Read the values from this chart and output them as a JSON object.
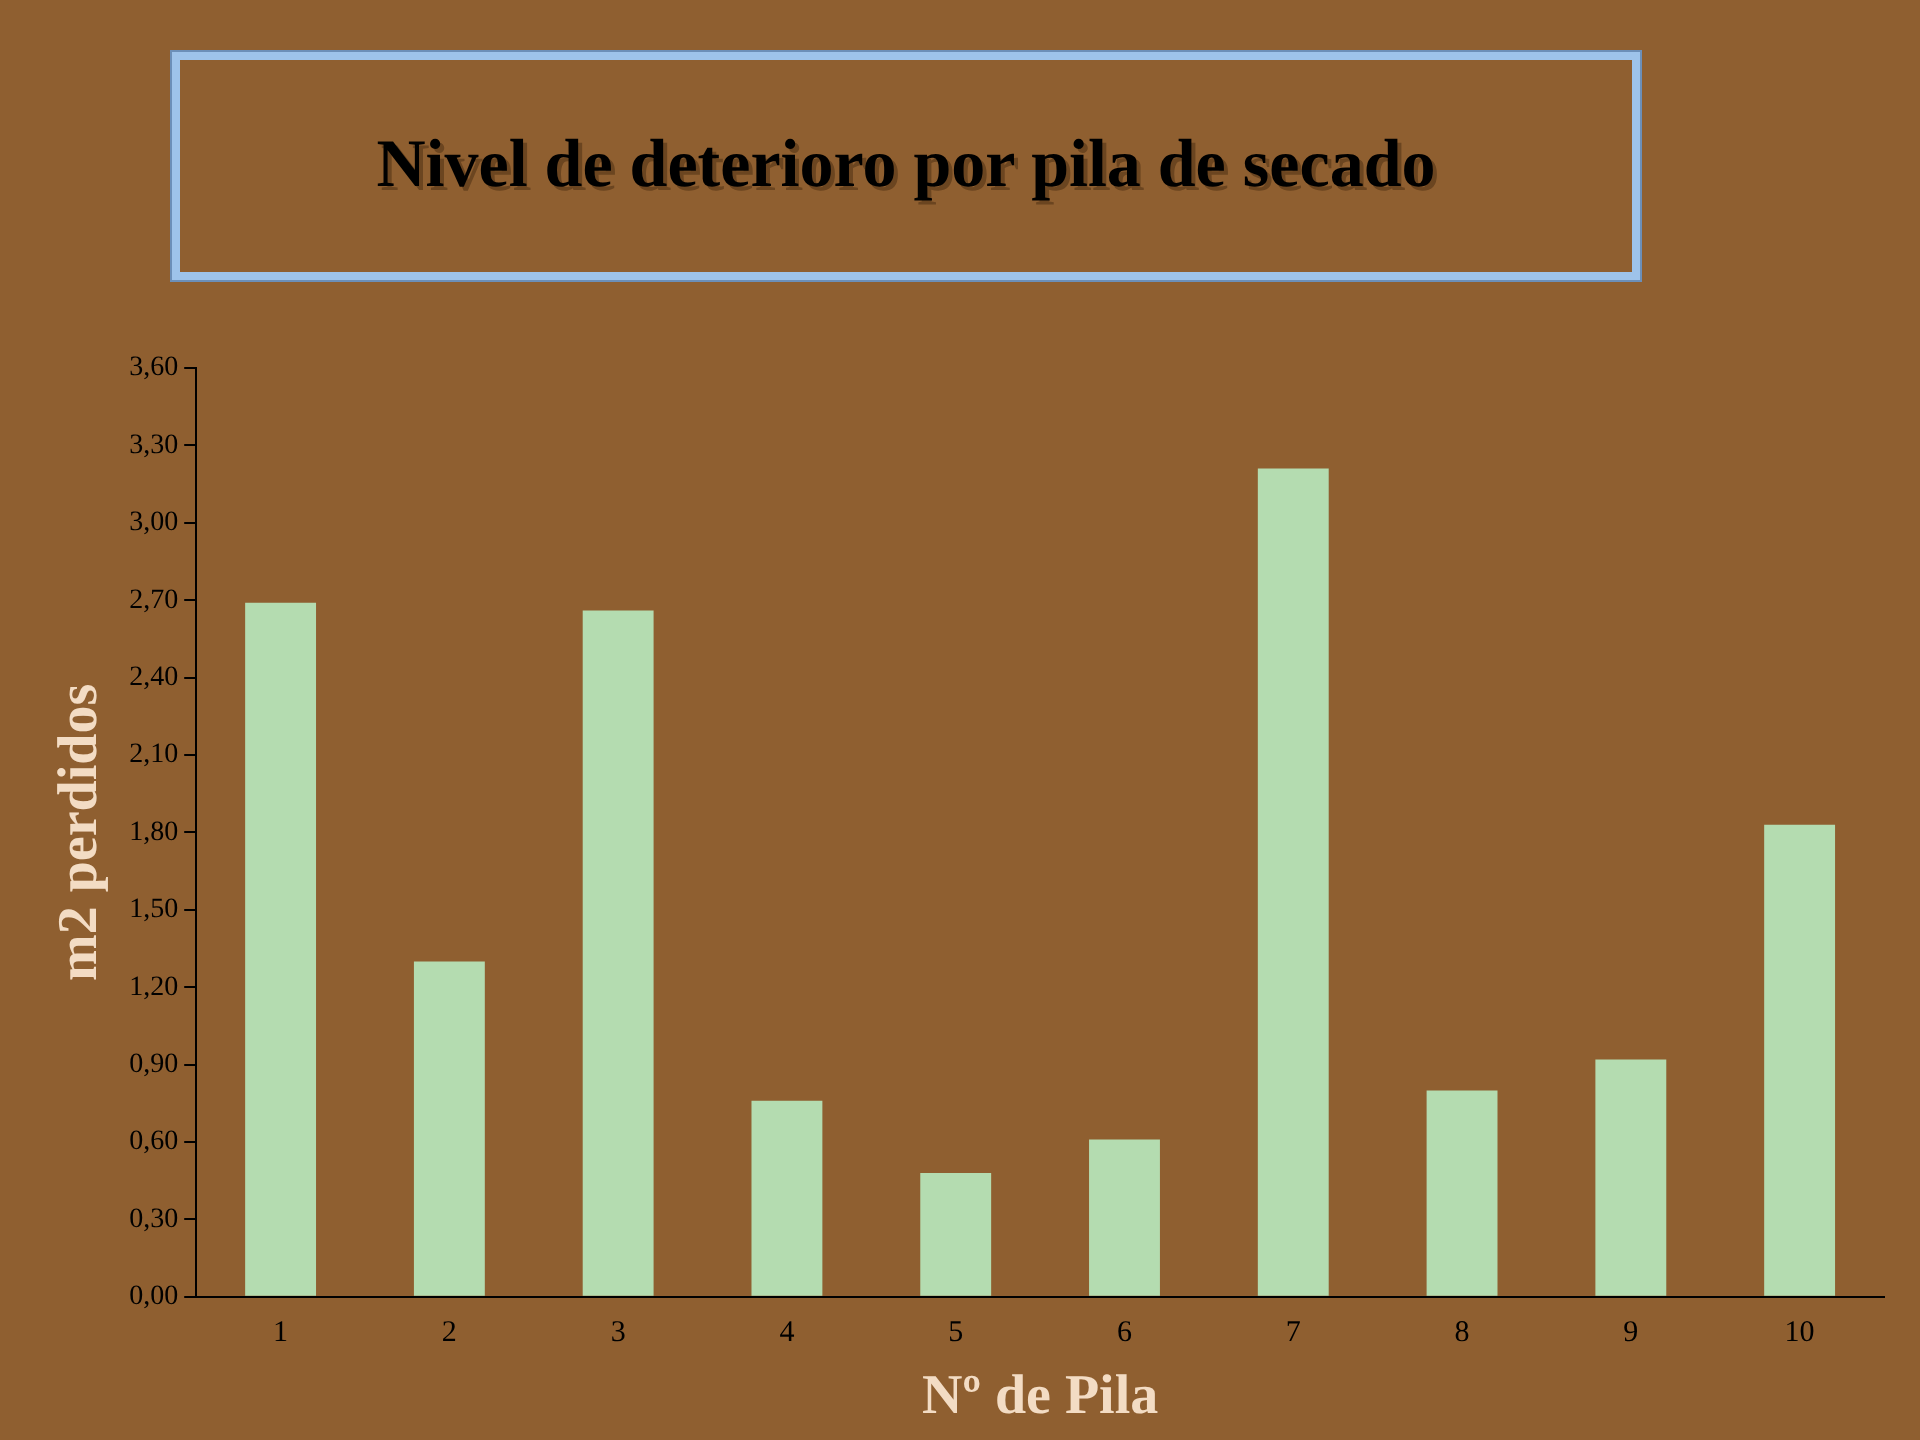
{
  "chart_data": {
    "type": "bar",
    "title": "Nivel de deterioro por pila de secado",
    "xlabel": "Nº de Pila",
    "ylabel": "m2 perdidos",
    "categories": [
      "1",
      "2",
      "3",
      "4",
      "5",
      "6",
      "7",
      "8",
      "9",
      "10"
    ],
    "values": [
      2.69,
      1.3,
      2.66,
      0.76,
      0.48,
      0.61,
      3.21,
      0.8,
      0.92,
      1.83
    ],
    "color": "#b4dcb0",
    "ylim": [
      0,
      3.6
    ],
    "yticks": [
      {
        "value": 0,
        "label": "0,00"
      },
      {
        "value": 0.3,
        "label": "0,30"
      },
      {
        "value": 0.6,
        "label": "0,60"
      },
      {
        "value": 0.9,
        "label": "0,90"
      },
      {
        "value": 1.2,
        "label": "1,20"
      },
      {
        "value": 1.5,
        "label": "1,50"
      },
      {
        "value": 1.8,
        "label": "1,80"
      },
      {
        "value": 2.1,
        "label": "2,10"
      },
      {
        "value": 2.4,
        "label": "2,40"
      },
      {
        "value": 2.7,
        "label": "2,70"
      },
      {
        "value": 3.0,
        "label": "3,00"
      },
      {
        "value": 3.3,
        "label": "3,30"
      },
      {
        "value": 3.6,
        "label": "3,60"
      }
    ],
    "grid": false,
    "legend": false
  }
}
